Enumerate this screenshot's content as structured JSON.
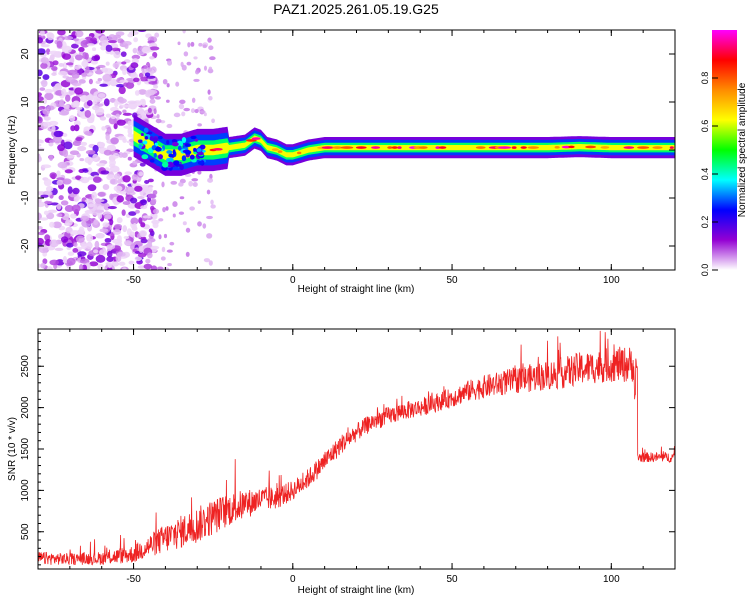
{
  "title": "PAZ1.2025.261.05.19.G25",
  "chart_data": [
    {
      "type": "heatmap",
      "xlabel": "Height of straight line (km)",
      "ylabel": "Frequency (Hz)",
      "xlim": [
        -80,
        120
      ],
      "ylim": [
        -25,
        25
      ],
      "xticks": [
        -50,
        0,
        50,
        100
      ],
      "xtick_labels": [
        "-50",
        "0",
        "50",
        "100"
      ],
      "yticks": [
        -20,
        -10,
        0,
        10,
        20
      ],
      "ytick_labels": [
        "-20",
        "-10",
        "0",
        "10",
        "20"
      ],
      "colorbar": {
        "label": "Normalized spectral amplitude",
        "range": [
          0,
          1
        ],
        "ticks": [
          0.0,
          0.2,
          0.4,
          0.6,
          0.8
        ],
        "tick_labels": [
          "0.0",
          "0.2",
          "0.4",
          "0.6",
          "0.8"
        ],
        "colors": [
          "#ffffff",
          "#9400d3",
          "#0000ff",
          "#00ffff",
          "#00ff00",
          "#ffff00",
          "#ff8c00",
          "#ff0000",
          "#ff00ff"
        ]
      },
      "ridge": {
        "description_values": "dominant frequency (Hz) vs height (km)",
        "x": [
          -50,
          -45,
          -40,
          -35,
          -30,
          -25,
          -20,
          -15,
          -12,
          -10,
          -8,
          -5,
          -2,
          0,
          5,
          10,
          20,
          30,
          40,
          50,
          60,
          70,
          80,
          90,
          100,
          110,
          120
        ],
        "y": [
          3,
          1,
          -1,
          -1,
          0,
          0,
          0.5,
          1,
          2.5,
          2,
          0.5,
          0,
          -1,
          -1,
          0,
          0.5,
          0.5,
          0.5,
          0.5,
          0.5,
          0.5,
          0.5,
          0.5,
          0.7,
          0.5,
          0.5,
          0.5
        ]
      },
      "noise_region_x": [
        -80,
        -45
      ]
    },
    {
      "type": "line",
      "xlabel": "Height of straight line (km)",
      "ylabel": "SNR (10 * v/v)",
      "xlim": [
        -80,
        120
      ],
      "ylim": [
        50,
        2950
      ],
      "xticks": [
        -50,
        0,
        50,
        100
      ],
      "xtick_labels": [
        "-50",
        "0",
        "50",
        "100"
      ],
      "yticks": [
        500,
        1000,
        1500,
        2000,
        2500
      ],
      "ytick_labels": [
        "500",
        "1000",
        "1500",
        "2000",
        "2500"
      ],
      "line_color": "#ee2222",
      "series": [
        {
          "x": [
            -80,
            -70,
            -60,
            -50,
            -45,
            -40,
            -35,
            -30,
            -25,
            -20,
            -15,
            -10,
            -5,
            0,
            5,
            10,
            15,
            20,
            25,
            30,
            35,
            40,
            45,
            50,
            55,
            60,
            65,
            70,
            75,
            80,
            85,
            90,
            95,
            100,
            105,
            107,
            108,
            110,
            115,
            120
          ],
          "y": [
            180,
            170,
            180,
            230,
            330,
            420,
            500,
            580,
            680,
            770,
            830,
            890,
            910,
            1000,
            1150,
            1350,
            1550,
            1700,
            1830,
            1900,
            1960,
            2000,
            2060,
            2120,
            2200,
            2250,
            2290,
            2330,
            2360,
            2390,
            2420,
            2470,
            2490,
            2520,
            2520,
            2530,
            1400,
            1400,
            1400,
            1400
          ],
          "noise_amp": [
            80,
            70,
            80,
            110,
            140,
            180,
            200,
            220,
            220,
            200,
            180,
            150,
            140,
            120,
            120,
            120,
            120,
            110,
            110,
            110,
            110,
            110,
            110,
            120,
            130,
            140,
            150,
            160,
            170,
            180,
            190,
            200,
            200,
            210,
            220,
            220,
            60,
            60,
            60,
            60
          ]
        }
      ]
    }
  ]
}
